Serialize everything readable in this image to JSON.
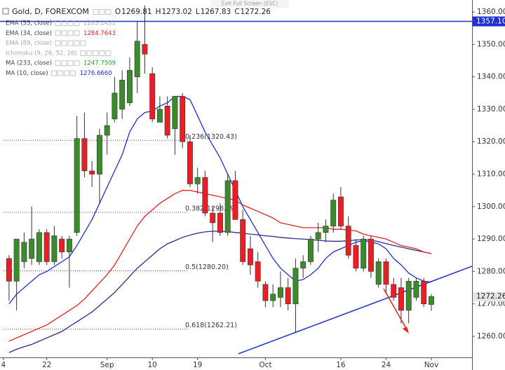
{
  "overlay": {
    "text": "Exit Full Screen (ESC)"
  },
  "chart_data": {
    "type": "candlestick",
    "title": "Gold, D, FOREXCOM",
    "ohlc_letters": [
      "O",
      "H",
      "L",
      "C"
    ],
    "xlim": [
      -1.2,
      61.4
    ],
    "xticks": [
      {
        "value": -0.75,
        "label": "4"
      },
      {
        "value": 5,
        "label": "22"
      },
      {
        "value": 13,
        "label": "Sep"
      },
      {
        "value": 19,
        "label": "10"
      },
      {
        "value": 25,
        "label": "19"
      },
      {
        "value": 34,
        "label": "Oct"
      },
      {
        "value": 44,
        "label": "16"
      },
      {
        "value": 50,
        "label": "24"
      },
      {
        "value": 56,
        "label": "Nov"
      }
    ],
    "ylim": [
      1253.5,
      1363.7
    ],
    "yticks": [
      {
        "value": 1260,
        "label": "1260.00"
      },
      {
        "value": 1270,
        "label": "1270.00"
      },
      {
        "value": 1280,
        "label": "1280.00"
      },
      {
        "value": 1290,
        "label": "1290.00"
      },
      {
        "value": 1300,
        "label": "1300.00"
      },
      {
        "value": 1310,
        "label": "1310.00"
      },
      {
        "value": 1320,
        "label": "1320.00"
      },
      {
        "value": 1330,
        "label": "1330.00"
      },
      {
        "value": 1340,
        "label": "1340.00"
      },
      {
        "value": 1350,
        "label": "1350.00"
      },
      {
        "value": 1360,
        "label": "1360.00"
      }
    ],
    "up_color": "#3b8a2c",
    "down_color": "#ee1c24",
    "open": [
      1284,
      1277,
      1283,
      1284,
      1283,
      1292,
      1283,
      1290,
      1286,
      1292,
      1321,
      1311,
      1310,
      1322,
      1327,
      1330,
      1332,
      1340,
      1350,
      1341,
      1326,
      1331,
      1324,
      1334,
      1320,
      1307,
      1309,
      1298,
      1298,
      1292,
      1308,
      1296,
      1287,
      1283,
      1276,
      1271,
      1272,
      1275,
      1270,
      1281,
      1283,
      1290,
      1292,
      1294,
      1303,
      1294,
      1288,
      1281,
      1290,
      1276,
      1283,
      1276,
      1275,
      1268,
      1272,
      1277,
      1269.81
    ],
    "high": [
      1285,
      1290,
      1292,
      1300,
      1293,
      1293,
      1294,
      1291,
      1291,
      1328,
      1329,
      1314,
      1324,
      1329,
      1340,
      1342,
      1346,
      1357,
      1362,
      1343,
      1334,
      1334,
      1334,
      1335,
      1322,
      1312,
      1311,
      1300,
      1301,
      1310,
      1311,
      1299,
      1291,
      1286,
      1277,
      1276,
      1280,
      1278,
      1284,
      1285,
      1291,
      1295,
      1296,
      1304,
      1306,
      1297,
      1290,
      1291,
      1291,
      1284,
      1284,
      1278,
      1278,
      1278,
      1278,
      1278,
      1273.02
    ],
    "low": [
      1271,
      1268,
      1281,
      1282,
      1282,
      1282,
      1282,
      1284,
      1275,
      1291,
      1309,
      1306,
      1301,
      1316,
      1326,
      1327,
      1331,
      1335,
      1341,
      1326,
      1326,
      1321,
      1316,
      1318,
      1306,
      1304,
      1297,
      1289,
      1291,
      1291,
      1296,
      1282,
      1279,
      1275,
      1269,
      1269,
      1269,
      1268,
      1261,
      1278,
      1282,
      1286,
      1289,
      1292,
      1293,
      1284,
      1280,
      1280,
      1278,
      1275,
      1273,
      1271,
      1264,
      1264,
      1271,
      1269,
      1267.83
    ],
    "close": [
      1277,
      1290,
      1289,
      1290,
      1292,
      1283,
      1291,
      1286,
      1290,
      1321,
      1311,
      1310,
      1322,
      1325,
      1335,
      1339,
      1342,
      1351,
      1347,
      1327,
      1330,
      1322,
      1334,
      1320,
      1307,
      1309,
      1298,
      1295,
      1292,
      1308,
      1296,
      1283,
      1282,
      1277,
      1271,
      1273,
      1275,
      1270,
      1281,
      1283,
      1290,
      1292,
      1294,
      1302,
      1294,
      1285,
      1281,
      1290,
      1280,
      1283,
      1276,
      1272,
      1268,
      1277,
      1277,
      1270,
      1272.26
    ],
    "indicators": [
      {
        "name": "EMA (55, close)",
        "color": "#2b2b8c",
        "value_label": "1285.1431",
        "visible": true,
        "values": [
          1255,
          1256,
          1256.8,
          1257.5,
          1258.5,
          1259.5,
          1260.5,
          1261.5,
          1263,
          1264.5,
          1266,
          1267.5,
          1269.5,
          1271.5,
          1273.5,
          1276,
          1278.5,
          1281,
          1283,
          1285,
          1287,
          1288.5,
          1289.5,
          1290.5,
          1291.2,
          1291.8,
          1292.2,
          1292.4,
          1292.4,
          1292.3,
          1292,
          1291.8,
          1291.5,
          1291.3,
          1291,
          1290.8,
          1290.5,
          1290.3,
          1290.1,
          1290,
          1289.8,
          1289.6,
          1289.4,
          1289.3,
          1289.3,
          1289.5,
          1289.7,
          1289.8,
          1289.6,
          1289.2,
          1288.6,
          1288,
          1287.5,
          1287,
          1286.5,
          1286,
          1285.5
        ]
      },
      {
        "name": "EMA (34, close)",
        "color": "#e82020",
        "value_label": "1284.7643",
        "visible": true,
        "values": [
          1258.5,
          1259.5,
          1260.5,
          1261.5,
          1262.5,
          1263.5,
          1265,
          1266.5,
          1268,
          1269.5,
          1271.5,
          1274,
          1276.5,
          1279,
          1282,
          1286,
          1290,
          1294,
          1297,
          1299,
          1301,
          1302.5,
          1304,
          1305,
          1305,
          1304.5,
          1304,
          1303.5,
          1303,
          1302.5,
          1302,
          1300.5,
          1299.5,
          1298.5,
          1297.5,
          1296.5,
          1295,
          1294.5,
          1294,
          1293.5,
          1293.5,
          1293.5,
          1293.5,
          1293,
          1293,
          1292.8,
          1292.5,
          1291.5,
          1291,
          1290.5,
          1290,
          1289,
          1288,
          1287.5,
          1287,
          1286,
          1285.5
        ]
      },
      {
        "name": "EMA (89, close)",
        "color": "#9aa0a8",
        "visible": false
      },
      {
        "name": "Ichimoku (9, 26, 52, 26)",
        "color": "#9aa0a8",
        "visible": false
      },
      {
        "name": "MA (233, close)",
        "color": "#2ca02c",
        "value_label": "1247.7509",
        "visible": true
      },
      {
        "name": "MA (10, close)",
        "color": "#1f2fd0",
        "value_label": "1276.6660",
        "visible": true,
        "values": [
          1270,
          1273,
          1275,
          1277,
          1279,
          1280,
          1281.5,
          1283,
          1284.5,
          1288,
          1292,
          1296,
          1301,
          1306,
          1311,
          1316,
          1323,
          1327,
          1329,
          1329.5,
          1331,
          1332,
          1334,
          1334,
          1333,
          1328,
          1323,
          1319,
          1315,
          1310,
          1305,
          1300,
          1296,
          1292,
          1288,
          1284,
          1281,
          1279,
          1277,
          1277.5,
          1279,
          1281,
          1284,
          1286,
          1287,
          1288,
          1289,
          1289.5,
          1289,
          1288.5,
          1287,
          1284,
          1282,
          1279.5,
          1278,
          1277,
          1276.7
        ]
      }
    ],
    "fib_levels": [
      {
        "value": 1320.43,
        "label": "0.236(1320.43)"
      },
      {
        "value": 1298.19,
        "label": "0.382(1298.19)"
      },
      {
        "value": 1280.2,
        "label": "0.5(1280.20)"
      },
      {
        "value": 1262.21,
        "label": "0.618(1262.21)"
      }
    ],
    "fib_color": "#3344cc",
    "hline": {
      "value": 1357.1,
      "label": "1357.10",
      "color": "#1f2fd0"
    },
    "trendline": {
      "x": [
        30.4,
        61.4
      ],
      "values": [
        1254.6,
        1281.6
      ],
      "color": "#1f2fd0"
    }
  }
}
